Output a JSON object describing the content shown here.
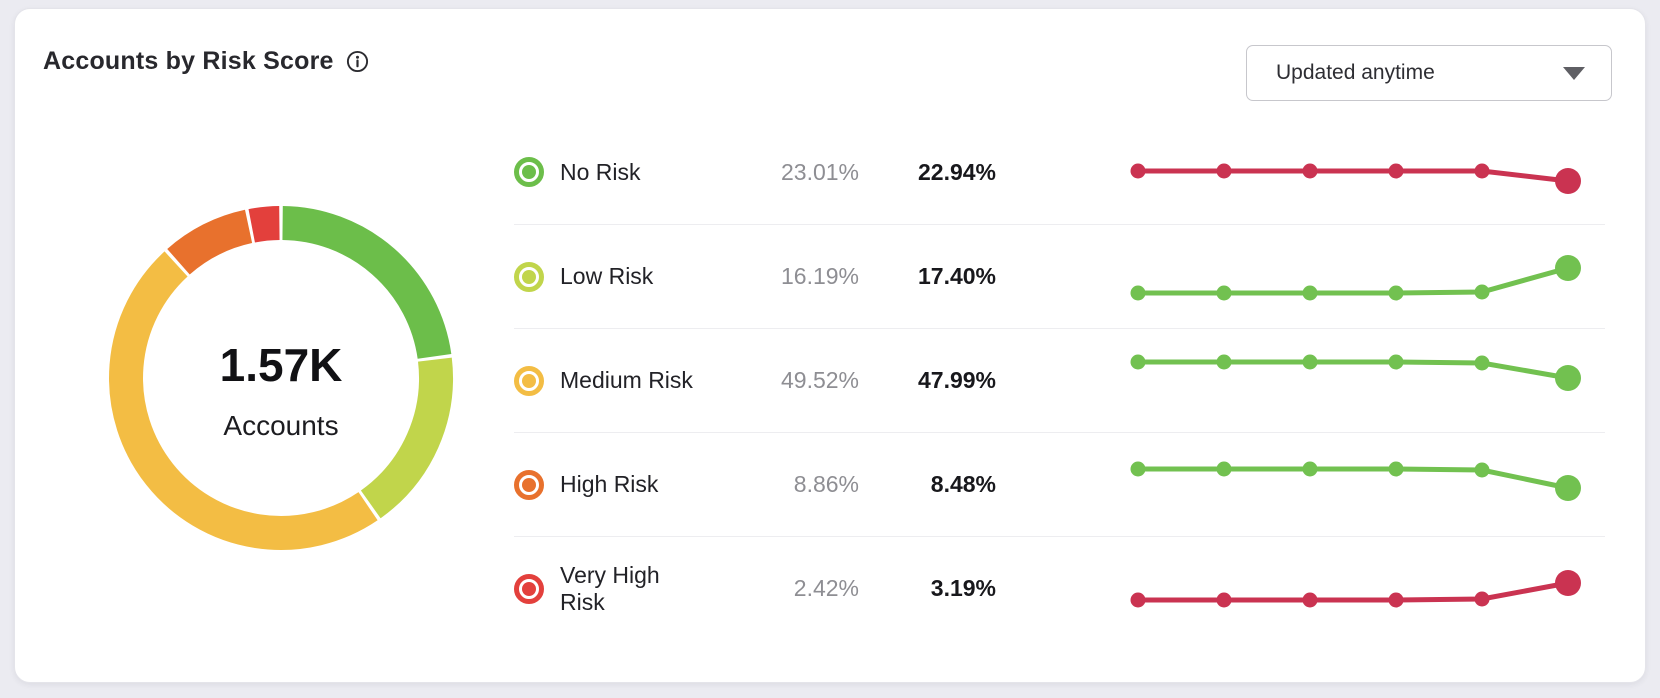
{
  "header": {
    "title": "Accounts by Risk Score",
    "filter_dropdown": {
      "selected": "Updated anytime"
    }
  },
  "donut": {
    "center_value": "1.57K",
    "center_label": "Accounts"
  },
  "rows": [
    {
      "label": "No Risk",
      "icon_color": "#6cbe4a",
      "secondary_value": "23.01%",
      "primary_value": "22.94%",
      "spark": {
        "color": "#ca3351",
        "x": [
          15,
          101,
          187,
          273,
          359,
          445
        ],
        "y": [
          35,
          35,
          35,
          35,
          35,
          45
        ]
      }
    },
    {
      "label": "Low Risk",
      "icon_color": "#c1d54b",
      "secondary_value": "16.19%",
      "primary_value": "17.40%",
      "spark": {
        "color": "#72c150",
        "x": [
          15,
          101,
          187,
          273,
          359,
          445
        ],
        "y": [
          52,
          52,
          52,
          52,
          51,
          27
        ]
      }
    },
    {
      "label": "Medium Risk",
      "icon_color": "#f3bd44",
      "secondary_value": "49.52%",
      "primary_value": "47.99%",
      "spark": {
        "color": "#72c150",
        "x": [
          15,
          101,
          187,
          273,
          359,
          445
        ],
        "y": [
          17,
          17,
          17,
          17,
          18,
          33
        ]
      }
    },
    {
      "label": "High Risk",
      "icon_color": "#e8712d",
      "secondary_value": "8.86%",
      "primary_value": "8.48%",
      "spark": {
        "color": "#72c150",
        "x": [
          15,
          101,
          187,
          273,
          359,
          445
        ],
        "y": [
          20,
          20,
          20,
          20,
          21,
          39
        ]
      }
    },
    {
      "label": "Very High Risk",
      "icon_color": "#e3403c",
      "secondary_value": "2.42%",
      "primary_value": "3.19%",
      "spark": {
        "color": "#ca3351",
        "x": [
          15,
          101,
          187,
          273,
          359,
          445
        ],
        "y": [
          47,
          47,
          47,
          47,
          46,
          30
        ]
      }
    }
  ],
  "colors": {
    "no_risk": "#6cbe4a",
    "low_risk": "#c1d54b",
    "medium_risk": "#f3bd44",
    "high_risk": "#e8712d",
    "very_high_risk": "#e3403c",
    "trend_up_good": "#72c150",
    "trend_bad": "#ca3351"
  },
  "chart_data": [
    {
      "type": "pie",
      "variant": "donut",
      "title": "Accounts by Risk Score",
      "center_value": "1.57K",
      "center_label": "Accounts",
      "categories": [
        "No Risk",
        "Low Risk",
        "Medium Risk",
        "High Risk",
        "Very High Risk"
      ],
      "values": [
        22.94,
        17.4,
        47.99,
        8.48,
        3.19
      ],
      "colors": [
        "#6cbe4a",
        "#c1d54b",
        "#f3bd44",
        "#e8712d",
        "#e3403c"
      ],
      "unit": "%",
      "start_angle_deg": 0,
      "direction": "clockwise",
      "legend_position": "right"
    },
    {
      "type": "line",
      "variant": "sparkline",
      "description": "Six-point trend per risk tier; flat history then final-period change with enlarged end marker; axes hidden",
      "series": [
        {
          "name": "No Risk",
          "values": [
            23.01,
            23.01,
            23.01,
            23.01,
            23.01,
            22.94
          ],
          "color": "#ca3351",
          "trend": "down"
        },
        {
          "name": "Low Risk",
          "values": [
            16.19,
            16.19,
            16.19,
            16.19,
            16.19,
            17.4
          ],
          "color": "#72c150",
          "trend": "up"
        },
        {
          "name": "Medium Risk",
          "values": [
            49.52,
            49.52,
            49.52,
            49.52,
            49.52,
            47.99
          ],
          "color": "#72c150",
          "trend": "down"
        },
        {
          "name": "High Risk",
          "values": [
            8.86,
            8.86,
            8.86,
            8.86,
            8.86,
            8.48
          ],
          "color": "#72c150",
          "trend": "down"
        },
        {
          "name": "Very High Risk",
          "values": [
            2.42,
            2.42,
            2.42,
            2.42,
            2.42,
            3.19
          ],
          "color": "#ca3351",
          "trend": "up"
        }
      ],
      "axes_hidden": true
    }
  ]
}
